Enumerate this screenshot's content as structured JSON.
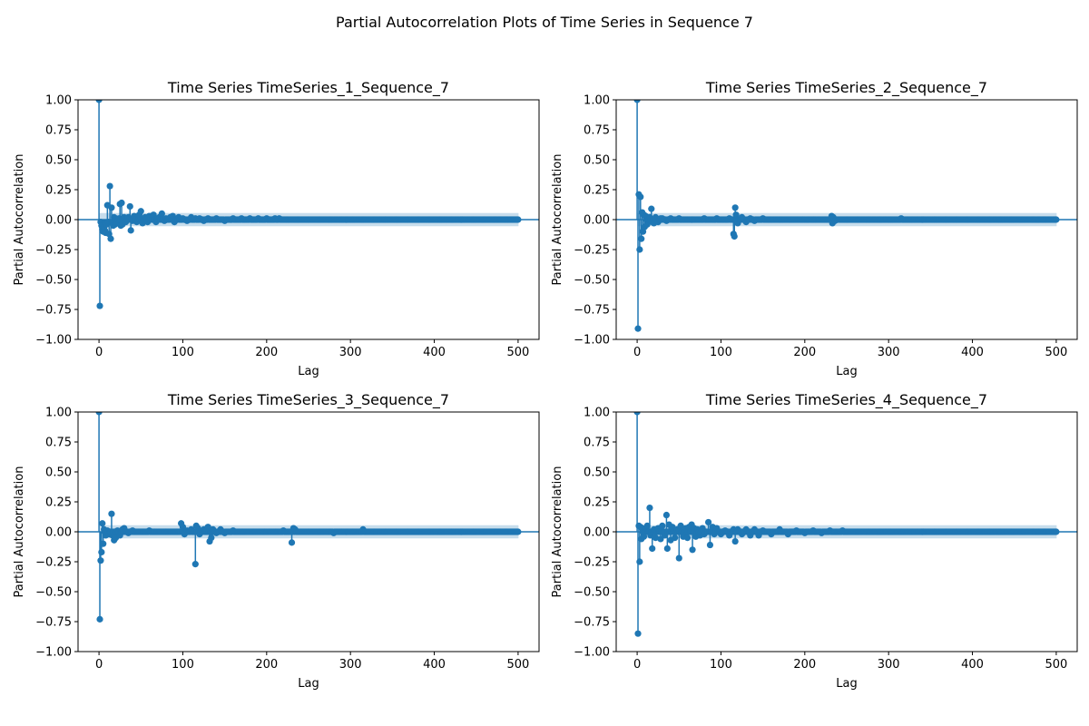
{
  "figure_title": "Partial Autocorrelation Plots of Time Series in Sequence 7",
  "colors": {
    "series": "#1f77b4",
    "band": "#1f77b4",
    "axis": "#000000"
  },
  "chart_data": [
    {
      "type": "scatter",
      "subtype": "partial-autocorrelation-stem",
      "title": "Time Series TimeSeries_1_Sequence_7",
      "xlabel": "Lag",
      "ylabel": "Partial Autocorrelation",
      "xlim": [
        -25,
        525
      ],
      "ylim": [
        -1.0,
        1.0
      ],
      "xticks": [
        0,
        100,
        200,
        300,
        400,
        500
      ],
      "xtick_labels": [
        "0",
        "100",
        "200",
        "300",
        "400",
        "500"
      ],
      "yticks": [
        -1.0,
        -0.75,
        -0.5,
        -0.25,
        0.0,
        0.25,
        0.5,
        0.75,
        1.0
      ],
      "ytick_labels": [
        "−1.00",
        "−0.75",
        "−0.50",
        "−0.25",
        "0.00",
        "0.25",
        "0.50",
        "0.75",
        "1.00"
      ],
      "max_lag": 500,
      "confidence": 0.055,
      "points": [
        [
          0,
          1.0
        ],
        [
          1,
          -0.72
        ],
        [
          2,
          -0.02
        ],
        [
          3,
          -0.05
        ],
        [
          4,
          -0.08
        ],
        [
          5,
          -0.1
        ],
        [
          6,
          -0.06
        ],
        [
          7,
          -0.09
        ],
        [
          8,
          -0.11
        ],
        [
          9,
          -0.04
        ],
        [
          10,
          0.12
        ],
        [
          11,
          -0.02
        ],
        [
          12,
          -0.12
        ],
        [
          13,
          0.28
        ],
        [
          14,
          -0.16
        ],
        [
          15,
          0.1
        ],
        [
          16,
          -0.03
        ],
        [
          17,
          -0.05
        ],
        [
          18,
          0.02
        ],
        [
          19,
          -0.04
        ],
        [
          20,
          0.01
        ],
        [
          22,
          -0.03
        ],
        [
          24,
          0.01
        ],
        [
          25,
          0.13
        ],
        [
          26,
          -0.05
        ],
        [
          27,
          0.14
        ],
        [
          28,
          -0.04
        ],
        [
          29,
          0.0
        ],
        [
          30,
          0.02
        ],
        [
          32,
          -0.02
        ],
        [
          35,
          0.02
        ],
        [
          37,
          0.11
        ],
        [
          38,
          -0.09
        ],
        [
          40,
          -0.01
        ],
        [
          42,
          0.03
        ],
        [
          45,
          -0.02
        ],
        [
          48,
          0.04
        ],
        [
          50,
          0.07
        ],
        [
          52,
          -0.03
        ],
        [
          55,
          0.02
        ],
        [
          58,
          -0.02
        ],
        [
          60,
          0.03
        ],
        [
          62,
          0.01
        ],
        [
          65,
          0.04
        ],
        [
          68,
          -0.02
        ],
        [
          70,
          0.01
        ],
        [
          72,
          0.02
        ],
        [
          75,
          0.05
        ],
        [
          78,
          -0.01
        ],
        [
          80,
          0.01
        ],
        [
          85,
          0.02
        ],
        [
          88,
          0.03
        ],
        [
          90,
          -0.02
        ],
        [
          95,
          0.02
        ],
        [
          100,
          0.01
        ],
        [
          105,
          -0.01
        ],
        [
          110,
          0.02
        ],
        [
          115,
          0.01
        ],
        [
          120,
          0.01
        ],
        [
          125,
          -0.01
        ],
        [
          130,
          0.01
        ],
        [
          140,
          0.01
        ],
        [
          150,
          -0.01
        ],
        [
          160,
          0.01
        ],
        [
          170,
          0.01
        ],
        [
          180,
          0.01
        ],
        [
          190,
          0.01
        ],
        [
          200,
          0.01
        ],
        [
          210,
          0.01
        ],
        [
          215,
          0.01
        ]
      ]
    },
    {
      "type": "scatter",
      "subtype": "partial-autocorrelation-stem",
      "title": "Time Series TimeSeries_2_Sequence_7",
      "xlabel": "Lag",
      "ylabel": "Partial Autocorrelation",
      "xlim": [
        -25,
        525
      ],
      "ylim": [
        -1.0,
        1.0
      ],
      "xticks": [
        0,
        100,
        200,
        300,
        400,
        500
      ],
      "xtick_labels": [
        "0",
        "100",
        "200",
        "300",
        "400",
        "500"
      ],
      "yticks": [
        -1.0,
        -0.75,
        -0.5,
        -0.25,
        0.0,
        0.25,
        0.5,
        0.75,
        1.0
      ],
      "ytick_labels": [
        "−1.00",
        "−0.75",
        "−0.50",
        "−0.25",
        "0.00",
        "0.25",
        "0.50",
        "0.75",
        "1.00"
      ],
      "max_lag": 500,
      "confidence": 0.055,
      "points": [
        [
          0,
          1.0
        ],
        [
          1,
          -0.91
        ],
        [
          2,
          0.21
        ],
        [
          3,
          -0.25
        ],
        [
          4,
          0.19
        ],
        [
          5,
          -0.16
        ],
        [
          6,
          0.06
        ],
        [
          7,
          -0.1
        ],
        [
          8,
          0.04
        ],
        [
          9,
          -0.06
        ],
        [
          10,
          0.03
        ],
        [
          12,
          -0.04
        ],
        [
          15,
          0.02
        ],
        [
          17,
          0.09
        ],
        [
          18,
          -0.02
        ],
        [
          20,
          -0.03
        ],
        [
          22,
          0.02
        ],
        [
          25,
          -0.02
        ],
        [
          28,
          0.01
        ],
        [
          30,
          0.01
        ],
        [
          35,
          -0.01
        ],
        [
          40,
          0.01
        ],
        [
          50,
          0.01
        ],
        [
          60,
          0.0
        ],
        [
          80,
          0.01
        ],
        [
          95,
          0.01
        ],
        [
          100,
          0.0
        ],
        [
          110,
          0.01
        ],
        [
          115,
          -0.12
        ],
        [
          116,
          -0.14
        ],
        [
          117,
          0.1
        ],
        [
          118,
          0.04
        ],
        [
          120,
          -0.03
        ],
        [
          125,
          0.02
        ],
        [
          130,
          -0.02
        ],
        [
          135,
          0.01
        ],
        [
          140,
          -0.01
        ],
        [
          150,
          0.01
        ],
        [
          160,
          0.0
        ],
        [
          200,
          0.0
        ],
        [
          232,
          0.03
        ],
        [
          233,
          -0.03
        ],
        [
          234,
          0.02
        ],
        [
          236,
          -0.01
        ],
        [
          240,
          0.0
        ],
        [
          300,
          0.0
        ],
        [
          315,
          0.01
        ]
      ]
    },
    {
      "type": "scatter",
      "subtype": "partial-autocorrelation-stem",
      "title": "Time Series TimeSeries_3_Sequence_7",
      "xlabel": "Lag",
      "ylabel": "Partial Autocorrelation",
      "xlim": [
        -25,
        525
      ],
      "ylim": [
        -1.0,
        1.0
      ],
      "xticks": [
        0,
        100,
        200,
        300,
        400,
        500
      ],
      "xtick_labels": [
        "0",
        "100",
        "200",
        "300",
        "400",
        "500"
      ],
      "yticks": [
        -1.0,
        -0.75,
        -0.5,
        -0.25,
        0.0,
        0.25,
        0.5,
        0.75,
        1.0
      ],
      "ytick_labels": [
        "−1.00",
        "−0.75",
        "−0.50",
        "−0.25",
        "0.00",
        "0.25",
        "0.50",
        "0.75",
        "1.00"
      ],
      "max_lag": 500,
      "confidence": 0.055,
      "points": [
        [
          0,
          1.0
        ],
        [
          1,
          -0.73
        ],
        [
          2,
          -0.24
        ],
        [
          3,
          -0.17
        ],
        [
          4,
          0.07
        ],
        [
          5,
          -0.1
        ],
        [
          6,
          0.02
        ],
        [
          8,
          -0.03
        ],
        [
          10,
          0.01
        ],
        [
          12,
          -0.02
        ],
        [
          15,
          0.15
        ],
        [
          16,
          -0.03
        ],
        [
          18,
          -0.07
        ],
        [
          20,
          -0.05
        ],
        [
          22,
          0.01
        ],
        [
          25,
          -0.03
        ],
        [
          28,
          0.02
        ],
        [
          30,
          0.03
        ],
        [
          35,
          -0.01
        ],
        [
          40,
          0.01
        ],
        [
          50,
          0.0
        ],
        [
          60,
          0.01
        ],
        [
          80,
          0.0
        ],
        [
          98,
          0.07
        ],
        [
          100,
          0.04
        ],
        [
          102,
          -0.02
        ],
        [
          105,
          0.01
        ],
        [
          110,
          0.02
        ],
        [
          115,
          -0.27
        ],
        [
          116,
          0.05
        ],
        [
          118,
          0.03
        ],
        [
          120,
          -0.02
        ],
        [
          125,
          0.02
        ],
        [
          130,
          0.04
        ],
        [
          132,
          -0.08
        ],
        [
          134,
          -0.05
        ],
        [
          136,
          0.02
        ],
        [
          140,
          -0.01
        ],
        [
          145,
          0.02
        ],
        [
          150,
          -0.01
        ],
        [
          160,
          0.01
        ],
        [
          200,
          0.0
        ],
        [
          220,
          0.01
        ],
        [
          230,
          -0.09
        ],
        [
          232,
          0.03
        ],
        [
          234,
          0.02
        ],
        [
          240,
          0.0
        ],
        [
          280,
          -0.01
        ],
        [
          300,
          0.0
        ],
        [
          315,
          0.02
        ]
      ]
    },
    {
      "type": "scatter",
      "subtype": "partial-autocorrelation-stem",
      "title": "Time Series TimeSeries_4_Sequence_7",
      "xlabel": "Lag",
      "ylabel": "Partial Autocorrelation",
      "xlim": [
        -25,
        525
      ],
      "ylim": [
        -1.0,
        1.0
      ],
      "xticks": [
        0,
        100,
        200,
        300,
        400,
        500
      ],
      "xtick_labels": [
        "0",
        "100",
        "200",
        "300",
        "400",
        "500"
      ],
      "yticks": [
        -1.0,
        -0.75,
        -0.5,
        -0.25,
        0.0,
        0.25,
        0.5,
        0.75,
        1.0
      ],
      "ytick_labels": [
        "−1.00",
        "−0.75",
        "−0.50",
        "−0.25",
        "0.00",
        "0.25",
        "0.50",
        "0.75",
        "1.00"
      ],
      "max_lag": 500,
      "confidence": 0.055,
      "points": [
        [
          0,
          1.0
        ],
        [
          1,
          -0.85
        ],
        [
          2,
          0.05
        ],
        [
          3,
          -0.25
        ],
        [
          4,
          0.04
        ],
        [
          5,
          -0.06
        ],
        [
          6,
          0.03
        ],
        [
          8,
          -0.04
        ],
        [
          10,
          0.02
        ],
        [
          12,
          0.05
        ],
        [
          15,
          0.2
        ],
        [
          16,
          -0.03
        ],
        [
          18,
          -0.14
        ],
        [
          20,
          0.02
        ],
        [
          22,
          -0.05
        ],
        [
          25,
          0.03
        ],
        [
          28,
          -0.06
        ],
        [
          30,
          0.05
        ],
        [
          33,
          -0.03
        ],
        [
          35,
          0.14
        ],
        [
          36,
          -0.14
        ],
        [
          38,
          0.06
        ],
        [
          40,
          -0.07
        ],
        [
          42,
          0.04
        ],
        [
          45,
          -0.05
        ],
        [
          48,
          0.02
        ],
        [
          50,
          -0.22
        ],
        [
          52,
          0.05
        ],
        [
          55,
          -0.04
        ],
        [
          58,
          0.03
        ],
        [
          60,
          -0.05
        ],
        [
          62,
          0.04
        ],
        [
          65,
          0.06
        ],
        [
          66,
          -0.15
        ],
        [
          68,
          0.03
        ],
        [
          70,
          -0.04
        ],
        [
          72,
          0.02
        ],
        [
          75,
          -0.03
        ],
        [
          78,
          0.03
        ],
        [
          80,
          -0.02
        ],
        [
          85,
          0.08
        ],
        [
          87,
          -0.11
        ],
        [
          90,
          0.04
        ],
        [
          92,
          -0.02
        ],
        [
          95,
          0.03
        ],
        [
          100,
          -0.02
        ],
        [
          105,
          0.01
        ],
        [
          110,
          -0.03
        ],
        [
          115,
          0.02
        ],
        [
          117,
          -0.08
        ],
        [
          120,
          0.02
        ],
        [
          125,
          -0.02
        ],
        [
          130,
          0.02
        ],
        [
          135,
          -0.03
        ],
        [
          140,
          0.02
        ],
        [
          145,
          -0.03
        ],
        [
          150,
          0.01
        ],
        [
          160,
          -0.02
        ],
        [
          170,
          0.02
        ],
        [
          180,
          -0.02
        ],
        [
          190,
          0.01
        ],
        [
          200,
          -0.01
        ],
        [
          210,
          0.01
        ],
        [
          220,
          -0.01
        ],
        [
          230,
          0.01
        ],
        [
          240,
          0.0
        ],
        [
          245,
          0.01
        ]
      ]
    }
  ]
}
